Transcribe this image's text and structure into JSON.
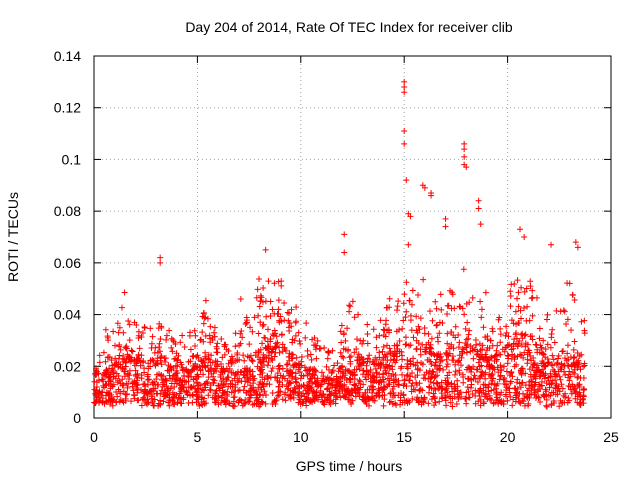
{
  "chart_data": {
    "type": "scatter",
    "title": "Day 204 of 2014, Rate Of TEC Index for receiver clib",
    "xlabel": "GPS time / hours",
    "ylabel": "ROTI / TECUs",
    "xlim": [
      0,
      25
    ],
    "ylim": [
      0,
      0.14
    ],
    "xticks": [
      0,
      5,
      10,
      15,
      20,
      25
    ],
    "yticks": [
      0,
      0.02,
      0.04,
      0.06,
      0.08,
      0.1,
      0.12,
      0.14
    ],
    "xtick_labels": [
      "0",
      "5",
      "10",
      "15",
      "20",
      "25"
    ],
    "ytick_labels": [
      "0",
      "0.02",
      "0.04",
      "0.06",
      "0.08",
      "0.1",
      "0.12",
      "0.14"
    ],
    "grid": true,
    "marker": "+",
    "marker_color": "#ff0000",
    "series": [
      {
        "name": "ROTI",
        "notable_points": [
          {
            "x": 3.2,
            "y": 0.062
          },
          {
            "x": 3.2,
            "y": 0.06
          },
          {
            "x": 7.1,
            "y": 0.046
          },
          {
            "x": 8.3,
            "y": 0.065
          },
          {
            "x": 12.1,
            "y": 0.071
          },
          {
            "x": 12.1,
            "y": 0.064
          },
          {
            "x": 15.0,
            "y": 0.13
          },
          {
            "x": 15.0,
            "y": 0.128
          },
          {
            "x": 15.0,
            "y": 0.126
          },
          {
            "x": 15.0,
            "y": 0.111
          },
          {
            "x": 15.0,
            "y": 0.106
          },
          {
            "x": 15.1,
            "y": 0.092
          },
          {
            "x": 15.2,
            "y": 0.079
          },
          {
            "x": 15.3,
            "y": 0.078
          },
          {
            "x": 15.2,
            "y": 0.067
          },
          {
            "x": 15.9,
            "y": 0.09
          },
          {
            "x": 16.0,
            "y": 0.089
          },
          {
            "x": 16.3,
            "y": 0.087
          },
          {
            "x": 16.3,
            "y": 0.086
          },
          {
            "x": 17.0,
            "y": 0.077
          },
          {
            "x": 17.0,
            "y": 0.074
          },
          {
            "x": 17.9,
            "y": 0.106
          },
          {
            "x": 17.9,
            "y": 0.104
          },
          {
            "x": 17.9,
            "y": 0.101
          },
          {
            "x": 17.9,
            "y": 0.098
          },
          {
            "x": 18.0,
            "y": 0.097
          },
          {
            "x": 18.6,
            "y": 0.084
          },
          {
            "x": 18.6,
            "y": 0.081
          },
          {
            "x": 18.7,
            "y": 0.075
          },
          {
            "x": 20.6,
            "y": 0.073
          },
          {
            "x": 20.8,
            "y": 0.07
          },
          {
            "x": 22.1,
            "y": 0.067
          },
          {
            "x": 23.3,
            "y": 0.068
          },
          {
            "x": 23.4,
            "y": 0.066
          }
        ],
        "activity_envelope": {
          "hours": [
            0,
            0.5,
            1,
            1.5,
            2,
            2.5,
            3,
            3.5,
            4,
            4.5,
            5,
            5.5,
            6,
            6.5,
            7,
            7.5,
            8,
            8.5,
            9,
            9.5,
            10,
            10.5,
            11,
            11.5,
            12,
            12.5,
            13,
            13.5,
            14,
            14.5,
            15,
            15.5,
            16,
            16.5,
            17,
            17.5,
            18,
            18.5,
            19,
            19.5,
            20,
            20.5,
            21,
            21.5,
            22,
            22.5,
            23,
            23.5
          ],
          "typical": [
            0.015,
            0.018,
            0.02,
            0.025,
            0.022,
            0.02,
            0.022,
            0.02,
            0.018,
            0.018,
            0.02,
            0.025,
            0.02,
            0.018,
            0.018,
            0.02,
            0.025,
            0.03,
            0.028,
            0.025,
            0.02,
            0.018,
            0.015,
            0.015,
            0.02,
            0.025,
            0.022,
            0.02,
            0.025,
            0.025,
            0.028,
            0.025,
            0.028,
            0.025,
            0.025,
            0.028,
            0.03,
            0.028,
            0.025,
            0.022,
            0.028,
            0.03,
            0.028,
            0.025,
            0.022,
            0.022,
            0.025,
            0.02
          ],
          "upper": [
            0.025,
            0.035,
            0.035,
            0.05,
            0.038,
            0.035,
            0.04,
            0.035,
            0.032,
            0.035,
            0.035,
            0.05,
            0.035,
            0.03,
            0.035,
            0.04,
            0.055,
            0.055,
            0.055,
            0.045,
            0.04,
            0.035,
            0.028,
            0.028,
            0.04,
            0.05,
            0.04,
            0.035,
            0.045,
            0.05,
            0.055,
            0.05,
            0.055,
            0.05,
            0.05,
            0.05,
            0.06,
            0.055,
            0.05,
            0.045,
            0.06,
            0.06,
            0.055,
            0.045,
            0.04,
            0.045,
            0.055,
            0.04
          ]
        },
        "baseline_range": [
          0.005,
          0.015
        ]
      }
    ]
  }
}
